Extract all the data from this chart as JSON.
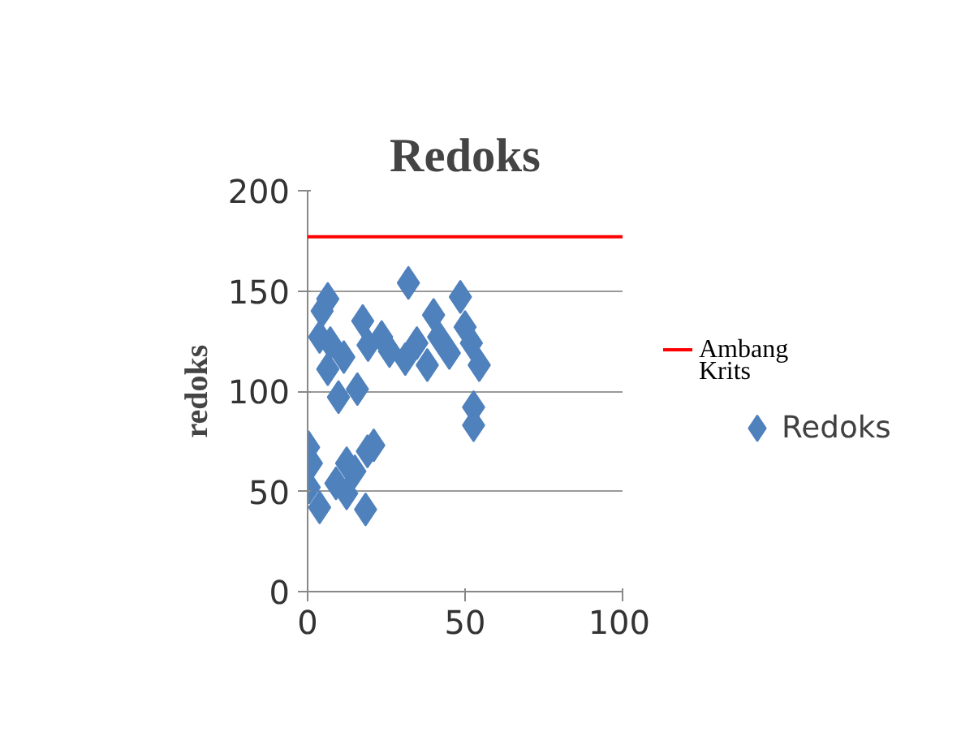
{
  "chart_data": {
    "type": "scatter",
    "title": "Redoks",
    "ylabel": "redoks",
    "xlim": [
      0,
      100
    ],
    "xticks": [
      0,
      50,
      100
    ],
    "ylim": [
      0,
      200
    ],
    "yticks": [
      0,
      50,
      100,
      150,
      200
    ],
    "grid": "y",
    "legend": "right",
    "marker": "diamond",
    "ref_lines": [
      {
        "axis": "y",
        "value": 177,
        "label": "Ambang Krits",
        "color": "#ff0000"
      }
    ],
    "series": [
      {
        "name": "Redoks",
        "color": "#4f81bd",
        "x": [
          6.4,
          4.6,
          3.8,
          7.2,
          6.4,
          9.8,
          11.5,
          15.8,
          17.5,
          19.2,
          23.5,
          26,
          32,
          31,
          34.7,
          38,
          40,
          41.6,
          45,
          48.5,
          50,
          52,
          54.5,
          52.7,
          52.7,
          0.3,
          1.2,
          0.5,
          3.8,
          9,
          12.4,
          15,
          19,
          21,
          18.4,
          12.4
        ],
        "values": [
          146,
          140,
          127,
          124,
          111,
          97,
          117,
          101,
          135,
          123,
          127,
          120,
          154,
          116,
          124,
          113,
          138,
          127,
          119,
          147,
          132,
          124,
          113,
          92,
          83,
          72,
          64,
          52,
          42,
          54,
          49,
          60,
          70,
          73,
          41,
          64
        ]
      }
    ]
  }
}
